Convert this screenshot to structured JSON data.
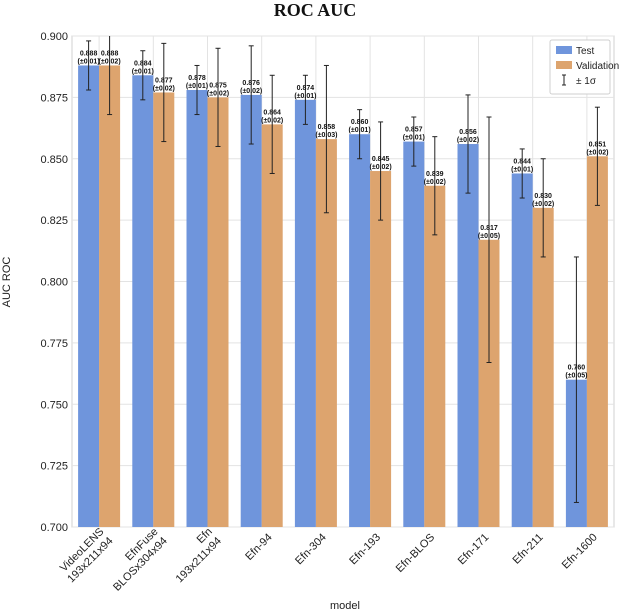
{
  "chart_data": {
    "type": "bar",
    "title": "ROC AUC",
    "xlabel": "model",
    "ylabel": "AUC ROC",
    "ylim": [
      0.7,
      0.9
    ],
    "yticks": [
      "0.700",
      "0.725",
      "0.750",
      "0.775",
      "0.800",
      "0.825",
      "0.850",
      "0.875",
      "0.900"
    ],
    "grid": true,
    "legend_position": "top-right",
    "categories": [
      [
        "VideoLENS",
        "193x211x94"
      ],
      [
        "EfnFuse",
        "BLOSx304x94"
      ],
      [
        "Efn",
        "193x211x94"
      ],
      [
        "Efn-94"
      ],
      [
        "Efn-304"
      ],
      [
        "Efn-193"
      ],
      [
        "Efn-BLOS"
      ],
      [
        "Efn-171"
      ],
      [
        "Efn-211"
      ],
      [
        "Efn-1600"
      ]
    ],
    "series": [
      {
        "name": "Test",
        "color": "#6f95dc",
        "values": [
          0.888,
          0.884,
          0.878,
          0.876,
          0.874,
          0.86,
          0.857,
          0.856,
          0.844,
          0.76
        ],
        "errors": [
          0.01,
          0.01,
          0.01,
          0.02,
          0.01,
          0.01,
          0.01,
          0.02,
          0.01,
          0.05
        ],
        "labels": [
          [
            "0.888",
            "(±0.01)"
          ],
          [
            "0.884",
            "(±0.01)"
          ],
          [
            "0.878",
            "(±0.01)"
          ],
          [
            "0.876",
            "(±0.02)"
          ],
          [
            "0.874",
            "(±0.01)"
          ],
          [
            "0.860",
            "(±0.01)"
          ],
          [
            "0.857",
            "(±0.01)"
          ],
          [
            "0.856",
            "(±0.02)"
          ],
          [
            "0.844",
            "(±0.01)"
          ],
          [
            "0.760",
            "(±0.05)"
          ]
        ]
      },
      {
        "name": "Validation",
        "color": "#dda46e",
        "values": [
          0.888,
          0.877,
          0.875,
          0.864,
          0.858,
          0.845,
          0.839,
          0.817,
          0.83,
          0.851
        ],
        "errors": [
          0.02,
          0.02,
          0.02,
          0.02,
          0.03,
          0.02,
          0.02,
          0.05,
          0.02,
          0.02
        ],
        "labels": [
          [
            "0.888",
            "(±0.02)"
          ],
          [
            "0.877",
            "(±0.02)"
          ],
          [
            "0.875",
            "(±0.02)"
          ],
          [
            "0.864",
            "(±0.02)"
          ],
          [
            "0.858",
            "(±0.03)"
          ],
          [
            "0.845",
            "(±0.02)"
          ],
          [
            "0.839",
            "(±0.02)"
          ],
          [
            "0.817",
            "(±0.05)"
          ],
          [
            "0.830",
            "(±0.02)"
          ],
          [
            "0.851",
            "(±0.02)"
          ]
        ]
      }
    ],
    "legend": [
      {
        "label": "Test",
        "kind": "patch",
        "color": "#6f95dc"
      },
      {
        "label": "Validation",
        "kind": "patch",
        "color": "#dda46e"
      },
      {
        "label": "± 1σ",
        "kind": "errorbar",
        "color": "#222222"
      }
    ]
  }
}
